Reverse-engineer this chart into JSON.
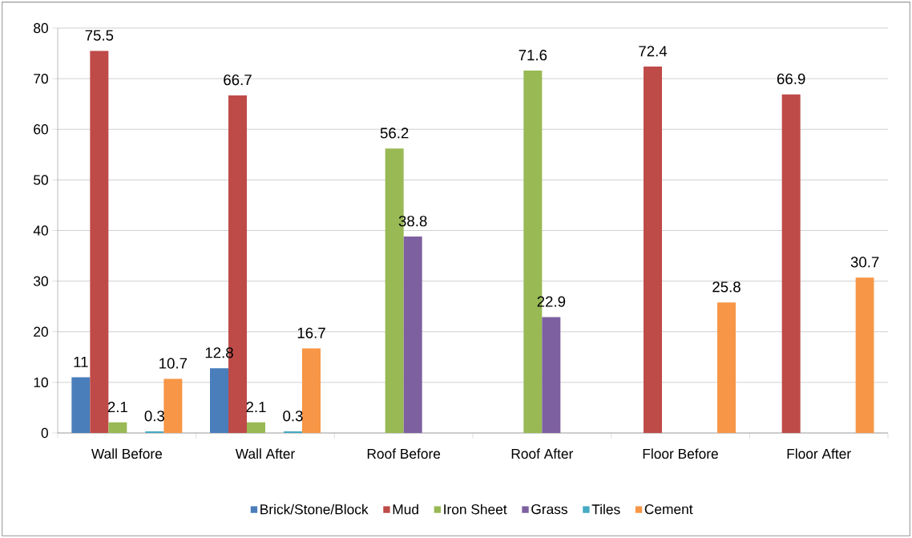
{
  "chart_data": {
    "type": "bar",
    "categories": [
      "Wall Before",
      "Wall After",
      "Roof Before",
      "Roof After",
      "Floor Before",
      "Floor After"
    ],
    "series": [
      {
        "name": "Brick/Stone/Block",
        "color": "#4a7ebb",
        "values": [
          11,
          12.8,
          null,
          null,
          null,
          null
        ]
      },
      {
        "name": "Mud",
        "color": "#be4b48",
        "values": [
          75.5,
          66.7,
          null,
          null,
          72.4,
          66.9
        ]
      },
      {
        "name": "Iron Sheet",
        "color": "#98b954",
        "values": [
          2.1,
          2.1,
          56.2,
          71.6,
          null,
          null
        ]
      },
      {
        "name": "Grass",
        "color": "#7d60a0",
        "values": [
          null,
          null,
          38.8,
          22.9,
          null,
          null
        ]
      },
      {
        "name": "Tiles",
        "color": "#46aac5",
        "values": [
          0.3,
          0.3,
          null,
          null,
          null,
          null
        ]
      },
      {
        "name": "Cement",
        "color": "#f79646",
        "values": [
          10.7,
          16.7,
          null,
          null,
          25.8,
          30.7
        ]
      }
    ],
    "ylim": [
      0,
      80
    ],
    "yticks": [
      0,
      10,
      20,
      30,
      40,
      50,
      60,
      70,
      80
    ],
    "grid": "y",
    "legend": "bottom",
    "data_labels": true
  }
}
